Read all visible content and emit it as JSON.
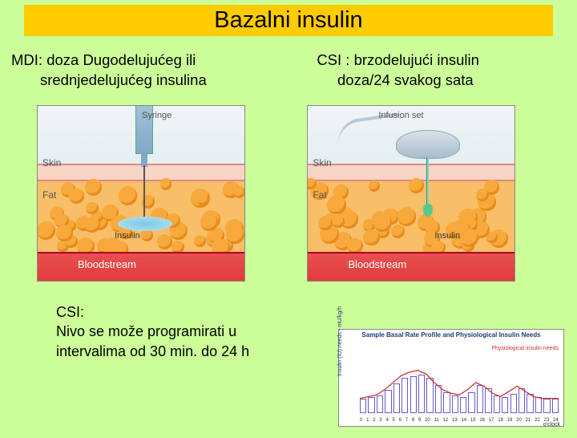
{
  "title": "Bazalni insulin",
  "left": {
    "heading_line1": "MDI:  doza Dugodelujućeg ili",
    "heading_line2": "srednjedelujućeg insulina",
    "illus": {
      "device_label": "Syringe",
      "skin_label": "Skin",
      "fat_label": "Fat",
      "insulin_label": "Insulin",
      "blood_label": "Bloodstream",
      "colors": {
        "skin": "#f8d4c4",
        "fat": "#f9be68",
        "blood": "#e23b3b",
        "spread": "#7dc9e6"
      }
    }
  },
  "right": {
    "heading_line1": "CSI : brzodelujući insulin",
    "heading_line2": "doza/24 svakog sata",
    "illus": {
      "device_label": "Infusion set",
      "skin_label": "Skin",
      "fat_label": "Fat",
      "insulin_label": "Insulin",
      "blood_label": "Bloodstream",
      "colors": {
        "skin": "#f8d4c4",
        "fat": "#f9be68",
        "blood": "#e23b3b",
        "drop": "#58c98a"
      }
    }
  },
  "note": {
    "line1": "CSI:",
    "line2": "Nivo se može  programirati u",
    "line3": "intervalima od 30 min. do 24 h"
  },
  "chart": {
    "type": "bar+line",
    "title": "Sample Basal Rate Profile and Physiological Insulin Needs",
    "ylabel": "Insulin (IU) needs - mU/kg/h",
    "xlabel": "o'clock",
    "legend": "Physiological insulin needs",
    "ylim": [
      0,
      4
    ],
    "xlim": [
      0,
      24
    ],
    "bar_color": "#ffffff",
    "bar_border": "#6a5acd",
    "line_color": "#cc3333",
    "background_color": "#ffffff",
    "xticks": [
      0,
      1,
      2,
      3,
      4,
      5,
      6,
      7,
      8,
      9,
      10,
      11,
      12,
      13,
      14,
      15,
      16,
      17,
      18,
      19,
      20,
      21,
      22,
      23,
      24
    ],
    "bar_values": [
      0.8,
      0.9,
      1.0,
      1.3,
      1.7,
      2.0,
      2.1,
      2.2,
      2.0,
      1.6,
      1.2,
      1.0,
      0.9,
      1.2,
      1.6,
      1.4,
      1.0,
      0.9,
      1.1,
      1.4,
      1.1,
      0.9,
      0.8,
      0.8
    ],
    "line_values": [
      0.9,
      1.0,
      1.1,
      1.4,
      1.8,
      2.2,
      2.4,
      2.5,
      2.3,
      1.8,
      1.4,
      1.2,
      1.1,
      1.4,
      1.8,
      1.6,
      1.2,
      1.0,
      1.3,
      1.6,
      1.3,
      1.0,
      0.9,
      0.9,
      0.9
    ]
  }
}
